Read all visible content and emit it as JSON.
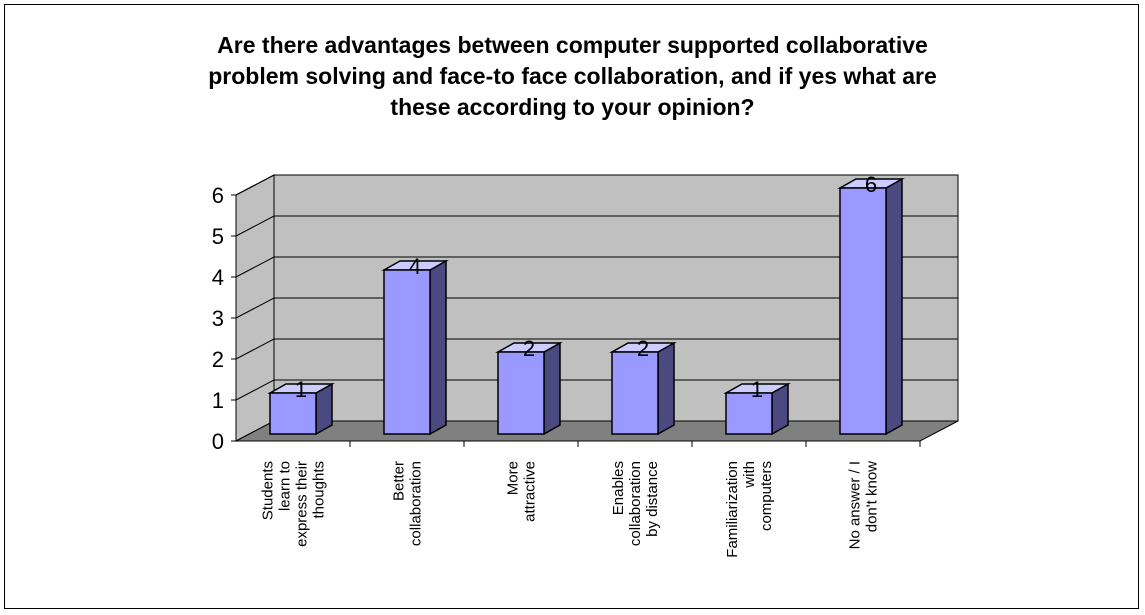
{
  "title_lines": [
    "Are there advantages between computer supported collaborative",
    "problem solving and face-to face collaboration, and if yes what are",
    "these according to your opinion?"
  ],
  "chart_data": {
    "type": "bar",
    "title": "Are there advantages between computer supported collaborative problem solving and face-to face collaboration, and if yes what are these according to your opinion?",
    "categories": [
      [
        "Students",
        "learn to",
        "express their",
        "thoughts"
      ],
      [
        "Better",
        "collaboration"
      ],
      [
        "More",
        "attractive"
      ],
      [
        "Enables",
        "collaboration",
        "by distance"
      ],
      [
        "Familiarization",
        "with",
        "computers"
      ],
      [
        "No answer / I",
        "don't know"
      ]
    ],
    "values": [
      1,
      4,
      2,
      2,
      1,
      6
    ],
    "ylim": [
      0,
      6
    ],
    "yticks": [
      0,
      1,
      2,
      3,
      4,
      5,
      6
    ],
    "grid": true,
    "three_d": true,
    "colors": {
      "bar_front": "#9999ff",
      "bar_side": "#4a4a80",
      "bar_top": "#ccccff",
      "wall": "#c0c0c0",
      "floor": "#808080"
    }
  }
}
